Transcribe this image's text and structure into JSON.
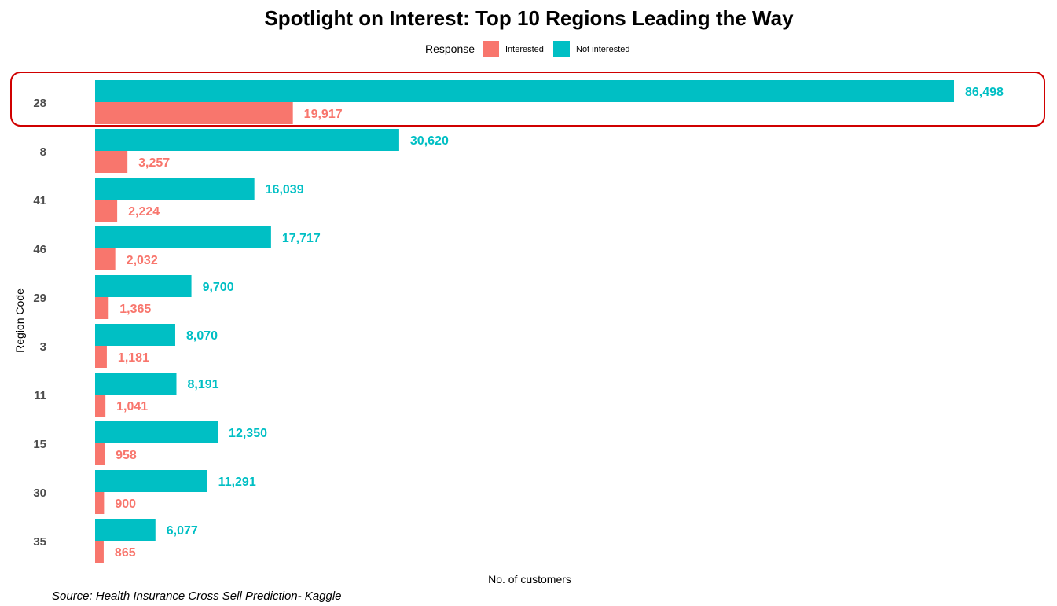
{
  "chart_data": {
    "type": "bar",
    "orientation": "horizontal",
    "title": "Spotlight on Interest: Top 10 Regions Leading the Way",
    "xlabel": "No. of customers",
    "ylabel": "Region Code",
    "categories": [
      "28",
      "8",
      "41",
      "46",
      "29",
      "3",
      "11",
      "15",
      "30",
      "35"
    ],
    "series": [
      {
        "name": "Not interested",
        "color": "#00BFC4",
        "values": [
          86498,
          30620,
          16039,
          17717,
          9700,
          8070,
          8191,
          12350,
          11291,
          6077
        ],
        "labels": [
          "86,498",
          "30,620",
          "16,039",
          "17,717",
          "9,700",
          "8,070",
          "8,191",
          "12,350",
          "11,291",
          "6,077"
        ]
      },
      {
        "name": "Interested",
        "color": "#F8766D",
        "values": [
          19917,
          3257,
          2224,
          2032,
          1365,
          1181,
          1041,
          958,
          900,
          865
        ],
        "labels": [
          "19,917",
          "3,257",
          "2,224",
          "2,032",
          "1,365",
          "1,181",
          "1,041",
          "958",
          "900",
          "865"
        ]
      }
    ],
    "legend": {
      "title": "Response",
      "placement": "top",
      "entries": [
        {
          "label": "Interested",
          "color": "#F8766D"
        },
        {
          "label": "Not interested",
          "color": "#00BFC4"
        }
      ]
    },
    "xlim": [
      0,
      86498
    ],
    "grid": false,
    "highlight": {
      "category": "28",
      "color": "#D00000"
    },
    "source": "Source: Health Insurance Cross Sell Prediction- Kaggle"
  }
}
